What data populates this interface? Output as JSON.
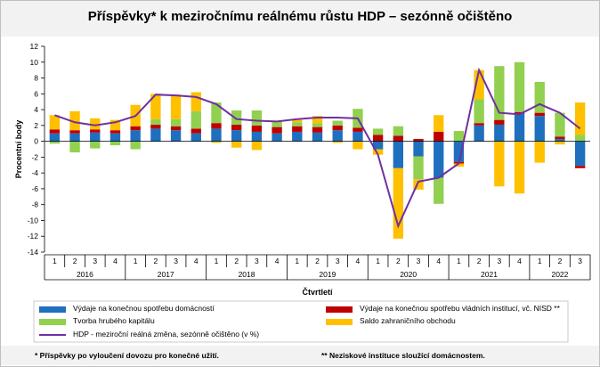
{
  "title": "Příspěvky* k meziročnímu reálnému růstu HDP – sezónně očištěno",
  "colors": {
    "households": "#1f6fbf",
    "government": "#c00000",
    "capital": "#92d050",
    "net_exports": "#ffc000",
    "gdp_line": "#7030a0"
  },
  "chart_data": {
    "type": "bar",
    "stacked": true,
    "title": "Příspěvky* k meziročnímu reálnému růstu HDP – sezónně očištěno",
    "xlabel": "Čtvrtletí",
    "ylabel": "Procentní body",
    "ylim": [
      -14,
      12
    ],
    "yticks": [
      12,
      10,
      8,
      6,
      4,
      2,
      0,
      -2,
      -4,
      -6,
      -8,
      -10,
      -12,
      -14
    ],
    "grid": false,
    "legend_position": "bottom",
    "categories": [
      "1",
      "2",
      "3",
      "4",
      "1",
      "2",
      "3",
      "4",
      "1",
      "2",
      "3",
      "4",
      "1",
      "2",
      "3",
      "4",
      "1",
      "2",
      "3",
      "4",
      "1",
      "2",
      "3",
      "4",
      "1",
      "2",
      "3"
    ],
    "years": [
      {
        "label": "2016",
        "start": 0,
        "count": 4
      },
      {
        "label": "2017",
        "start": 4,
        "count": 4
      },
      {
        "label": "2018",
        "start": 8,
        "count": 4
      },
      {
        "label": "2019",
        "start": 12,
        "count": 4
      },
      {
        "label": "2020",
        "start": 16,
        "count": 4
      },
      {
        "label": "2021",
        "start": 20,
        "count": 4
      },
      {
        "label": "2022",
        "start": 24,
        "count": 3
      }
    ],
    "series": [
      {
        "name": "Výdaje na konečnou spotřebu domácností",
        "kind": "bar",
        "color_key": "households",
        "values": [
          1.0,
          1.0,
          1.1,
          1.0,
          1.4,
          1.6,
          1.4,
          1.0,
          1.6,
          1.4,
          1.2,
          1.0,
          1.2,
          1.1,
          1.4,
          1.2,
          -1.0,
          -3.4,
          -1.9,
          -4.6,
          -2.6,
          2.0,
          2.1,
          3.5,
          3.2,
          0.3,
          -3.1
        ]
      },
      {
        "name": "Výdaje na konečnou spotřebu vládních institucí, vč. NISD **",
        "kind": "bar",
        "color_key": "government",
        "values": [
          0.5,
          0.4,
          0.4,
          0.4,
          0.5,
          0.5,
          0.5,
          0.6,
          0.7,
          0.7,
          0.8,
          0.8,
          0.7,
          0.7,
          0.6,
          0.5,
          0.8,
          0.7,
          0.3,
          1.2,
          -0.2,
          0.3,
          0.6,
          0.2,
          0.4,
          0.3,
          -0.3
        ]
      },
      {
        "name": "Tvorba hrubého kapitálu",
        "kind": "bar",
        "color_key": "capital",
        "values": [
          -0.3,
          -1.4,
          -0.9,
          -0.5,
          -1.0,
          0.7,
          0.9,
          2.2,
          2.6,
          1.8,
          1.9,
          0.8,
          0.5,
          0.5,
          0.6,
          2.4,
          0.8,
          1.2,
          -2.9,
          -3.3,
          1.3,
          3.0,
          6.8,
          6.3,
          3.9,
          3.0,
          0.8
        ]
      },
      {
        "name": "Saldo zahraničního obchodu",
        "kind": "bar",
        "color_key": "net_exports",
        "values": [
          1.8,
          2.4,
          1.4,
          1.3,
          2.7,
          3.2,
          3.1,
          2.4,
          -0.2,
          -0.8,
          -1.1,
          0.0,
          0.3,
          0.9,
          -0.2,
          -1.0,
          -0.7,
          -8.9,
          -1.3,
          2.1,
          -0.4,
          3.7,
          -5.7,
          -6.6,
          -2.7,
          -0.4,
          4.1
        ]
      },
      {
        "name": "HDP - meziroční reálná změna, sezónně očištěno (v %)",
        "kind": "line",
        "color_key": "gdp_line",
        "values": [
          3.3,
          2.4,
          2.0,
          2.4,
          3.2,
          5.9,
          5.8,
          5.6,
          4.7,
          2.8,
          2.6,
          2.5,
          2.8,
          3.0,
          3.0,
          2.9,
          -1.7,
          -10.7,
          -5.1,
          -4.6,
          -2.8,
          9.0,
          3.6,
          3.4,
          4.7,
          3.6,
          1.6
        ]
      }
    ]
  },
  "notes": {
    "left": "* Příspěvky po vyloučení dovozu pro konečné užití.",
    "right": "** Neziskové instituce sloužící domácnostem."
  }
}
